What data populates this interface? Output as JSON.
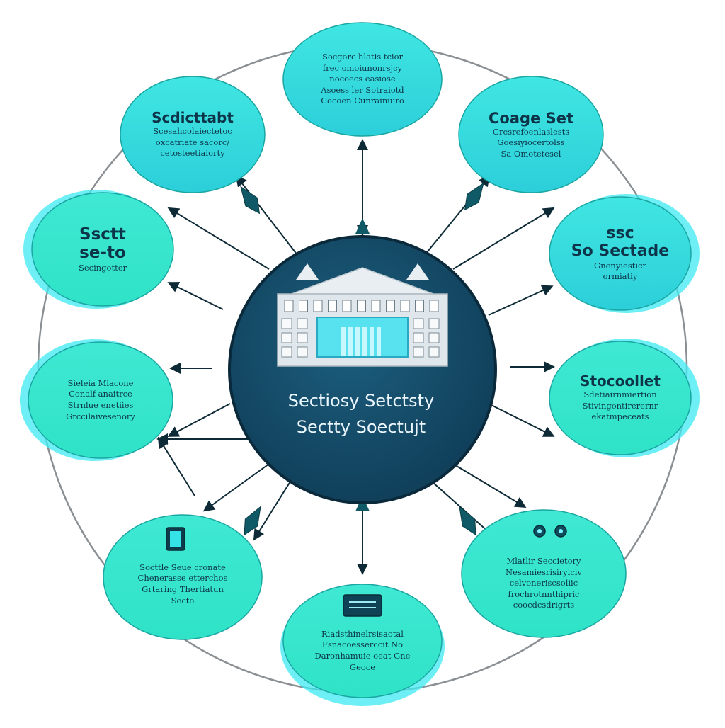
{
  "hub": {
    "line1": "Sectiosy Setctsty",
    "line2": "Sectty Soectujt"
  },
  "nodes": [
    {
      "id": "top",
      "title": "",
      "lines": [
        "Socgorc hlatis tcior",
        "frec omoiunonrsjcy",
        "nocoecs easiose",
        "Asoess ler Sotraiotd",
        "Cocoen Cunrainuiro"
      ]
    },
    {
      "id": "top-right",
      "title": "Coage Set",
      "lines": [
        "Gresrefoenlaslests",
        "Goesiyiocertolss",
        "Sa Omotetesel"
      ]
    },
    {
      "id": "right-upper",
      "title": "ssc\nSo Sectade",
      "lines": [
        "Gnenyiesticr",
        "ormiatiy"
      ]
    },
    {
      "id": "right-lower",
      "title": "Stocoollet",
      "lines": [
        "Sdetiairnmiertion",
        "Stivingontirerernr",
        "ekatmpeceats"
      ]
    },
    {
      "id": "bottom-right",
      "title": "",
      "lines": [
        "Mlatlir Seccietory",
        "Nesamiesrisiryiciv",
        "celvoneriscsoliic",
        "frochrotnnthipric",
        "coocdcsdrigrts"
      ]
    },
    {
      "id": "bottom",
      "title": "",
      "lines": [
        "Riadsthinelrsisaotal",
        "Fsnacoesserccit No",
        "Daronhamuie oeat Gne",
        "Geoce"
      ]
    },
    {
      "id": "bottom-left",
      "title": "",
      "lines": [
        "Socttle Seue cronate",
        "Chenerasse etterchos",
        "Grtaring Thertiatun",
        "Secto"
      ]
    },
    {
      "id": "left-lower",
      "title": "",
      "lines": [
        "Sieleia Mlacone",
        "Conalf anaitrce",
        "Strnlue enetiies",
        "Grccilaivesenory"
      ]
    },
    {
      "id": "left-upper",
      "title": "Ssctt\nse-to",
      "lines": [
        "Secingotter"
      ]
    },
    {
      "id": "top-left",
      "title": "Scdicttabt",
      "lines": [
        "Scesahcolaiectetoc",
        "oxcatriate sacorc/",
        "cetosteetiaiorty"
      ]
    }
  ],
  "icons": [
    "building-icon",
    "tablet-icon",
    "server-card-icon",
    "ring-dots-icon"
  ],
  "colors": {
    "hub_fill": "#0f3d57",
    "hub_edge": "#1c5e7e",
    "node_fill": "#2fe3c7",
    "node_fill_alt": "#2ccfd9",
    "node_glow": "#3de9f2",
    "ring": "#8a8f94",
    "connector": "#0d2a36",
    "pointer": "#0f5a66"
  }
}
